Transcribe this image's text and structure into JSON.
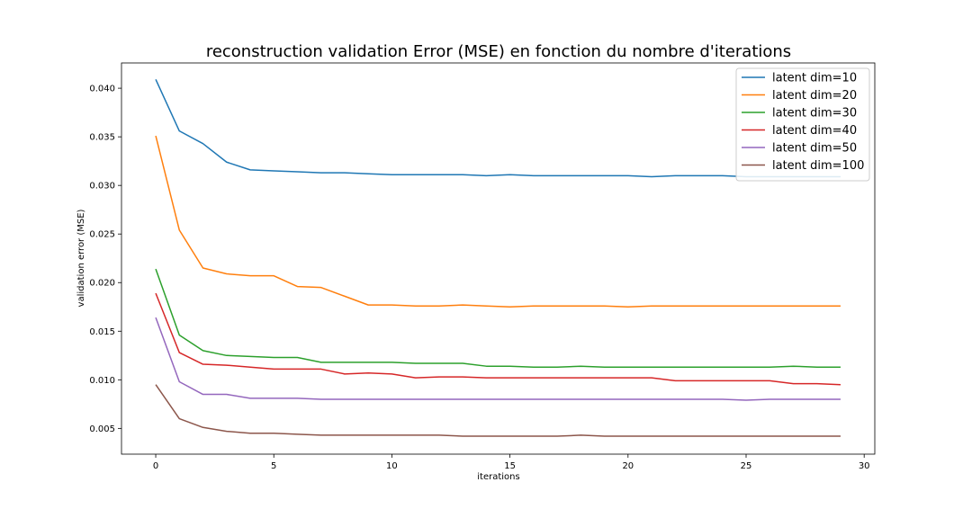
{
  "chart_data": {
    "type": "line",
    "title": "reconstruction validation Error (MSE) en fonction du nombre d'iterations",
    "xlabel": "iterations",
    "ylabel": "validation error (MSE)",
    "xlim": [
      -1.45,
      30.45
    ],
    "ylim": [
      0.00235,
      0.0426
    ],
    "xticks": [
      0,
      5,
      10,
      15,
      20,
      25,
      30
    ],
    "xtick_labels": [
      "0",
      "5",
      "10",
      "15",
      "20",
      "25",
      "30"
    ],
    "yticks": [
      0.005,
      0.01,
      0.015,
      0.02,
      0.025,
      0.03,
      0.035,
      0.04
    ],
    "ytick_labels": [
      "0.005",
      "0.010",
      "0.015",
      "0.020",
      "0.025",
      "0.030",
      "0.035",
      "0.040"
    ],
    "grid": false,
    "legend_position": "top-right",
    "x": [
      0,
      1,
      2,
      3,
      4,
      5,
      6,
      7,
      8,
      9,
      10,
      11,
      12,
      13,
      14,
      15,
      16,
      17,
      18,
      19,
      20,
      21,
      22,
      23,
      24,
      25,
      26,
      27,
      28,
      29
    ],
    "series": [
      {
        "name": "latent dim=10",
        "color": "#1f77b4",
        "values": [
          0.0409,
          0.0356,
          0.0343,
          0.0324,
          0.0316,
          0.0315,
          0.0314,
          0.0313,
          0.0313,
          0.0312,
          0.0311,
          0.0311,
          0.0311,
          0.0311,
          0.031,
          0.0311,
          0.031,
          0.031,
          0.031,
          0.031,
          0.031,
          0.0309,
          0.031,
          0.031,
          0.031,
          0.0309,
          0.0309,
          0.0309,
          0.0309,
          0.0309
        ]
      },
      {
        "name": "latent dim=20",
        "color": "#ff7f0e",
        "values": [
          0.0351,
          0.0254,
          0.0215,
          0.0209,
          0.0207,
          0.0207,
          0.0196,
          0.0195,
          0.0186,
          0.0177,
          0.0177,
          0.0176,
          0.0176,
          0.0177,
          0.0176,
          0.0175,
          0.0176,
          0.0176,
          0.0176,
          0.0176,
          0.0175,
          0.0176,
          0.0176,
          0.0176,
          0.0176,
          0.0176,
          0.0176,
          0.0176,
          0.0176,
          0.0176
        ]
      },
      {
        "name": "latent dim=30",
        "color": "#2ca02c",
        "values": [
          0.0214,
          0.0146,
          0.013,
          0.0125,
          0.0124,
          0.0123,
          0.0123,
          0.0118,
          0.0118,
          0.0118,
          0.0118,
          0.0117,
          0.0117,
          0.0117,
          0.0114,
          0.0114,
          0.0113,
          0.0113,
          0.0114,
          0.0113,
          0.0113,
          0.0113,
          0.0113,
          0.0113,
          0.0113,
          0.0113,
          0.0113,
          0.0114,
          0.0113,
          0.0113
        ]
      },
      {
        "name": "latent dim=40",
        "color": "#d62728",
        "values": [
          0.0189,
          0.0128,
          0.0116,
          0.0115,
          0.0113,
          0.0111,
          0.0111,
          0.0111,
          0.0106,
          0.0107,
          0.0106,
          0.0102,
          0.0103,
          0.0103,
          0.0102,
          0.0102,
          0.0102,
          0.0102,
          0.0102,
          0.0102,
          0.0102,
          0.0102,
          0.0099,
          0.0099,
          0.0099,
          0.0099,
          0.0099,
          0.0096,
          0.0096,
          0.0095
        ]
      },
      {
        "name": "latent dim=50",
        "color": "#9467bd",
        "values": [
          0.0164,
          0.0098,
          0.0085,
          0.0085,
          0.0081,
          0.0081,
          0.0081,
          0.008,
          0.008,
          0.008,
          0.008,
          0.008,
          0.008,
          0.008,
          0.008,
          0.008,
          0.008,
          0.008,
          0.008,
          0.008,
          0.008,
          0.008,
          0.008,
          0.008,
          0.008,
          0.0079,
          0.008,
          0.008,
          0.008,
          0.008
        ]
      },
      {
        "name": "latent dim=100",
        "color": "#8c564b",
        "values": [
          0.0095,
          0.006,
          0.0051,
          0.0047,
          0.0045,
          0.0045,
          0.0044,
          0.0043,
          0.0043,
          0.0043,
          0.0043,
          0.0043,
          0.0043,
          0.0042,
          0.0042,
          0.0042,
          0.0042,
          0.0042,
          0.0043,
          0.0042,
          0.0042,
          0.0042,
          0.0042,
          0.0042,
          0.0042,
          0.0042,
          0.0042,
          0.0042,
          0.0042,
          0.0042
        ]
      }
    ]
  }
}
